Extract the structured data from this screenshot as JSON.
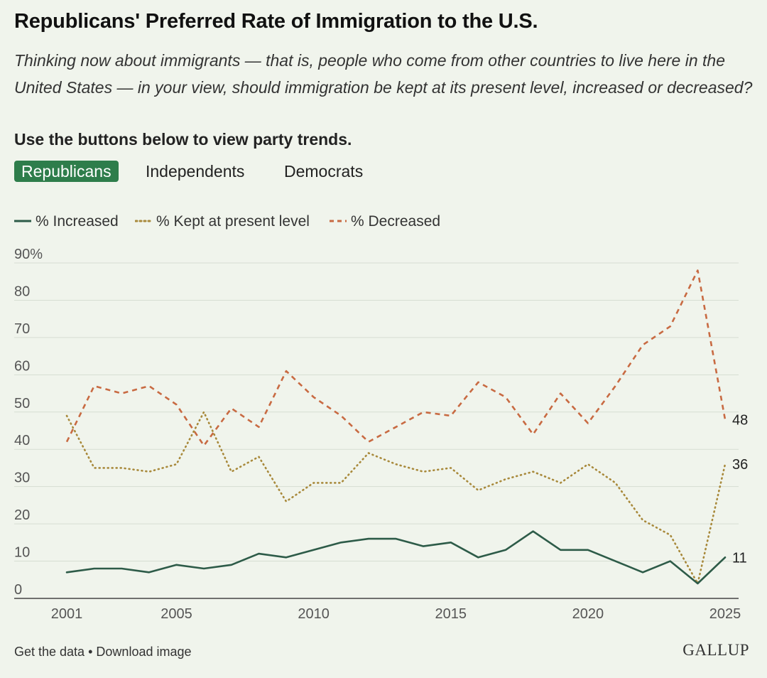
{
  "header": {
    "title": "Republicans' Preferred Rate of Immigration to the U.S.",
    "subtitle": "Thinking now about immigrants — that is, people who come from other countries to live here in the United States — in your view, should immigration be kept at its present level, increased or decreased?",
    "instruction": "Use the buttons below to view party trends."
  },
  "tabs": [
    {
      "label": "Republicans",
      "active": true
    },
    {
      "label": "Independents",
      "active": false
    },
    {
      "label": "Democrats",
      "active": false
    }
  ],
  "legend": [
    {
      "label": "% Increased"
    },
    {
      "label": "% Kept at present level"
    },
    {
      "label": "% Decreased"
    }
  ],
  "colors": {
    "increased": "#2d5b48",
    "kept": "#a8893b",
    "decreased": "#c86a42",
    "active_tab": "#2e7d4b",
    "grid": "#d6ddd2",
    "axis_text": "#555555"
  },
  "chart_data": {
    "type": "line",
    "x": [
      2001,
      2002,
      2003,
      2004,
      2005,
      2006,
      2007,
      2008,
      2009,
      2010,
      2011,
      2012,
      2013,
      2014,
      2015,
      2016,
      2017,
      2018,
      2019,
      2020,
      2021,
      2022,
      2023,
      2024,
      2025
    ],
    "series": [
      {
        "name": "% Increased",
        "style": "solid",
        "values": [
          7,
          8,
          8,
          7,
          9,
          8,
          9,
          12,
          11,
          13,
          15,
          16,
          16,
          14,
          15,
          11,
          13,
          18,
          13,
          13,
          10,
          7,
          10,
          4,
          11
        ],
        "end_label": "11"
      },
      {
        "name": "% Kept at present level",
        "style": "dotted",
        "values": [
          49,
          35,
          35,
          34,
          36,
          50,
          34,
          38,
          26,
          31,
          31,
          39,
          36,
          34,
          35,
          29,
          32,
          34,
          31,
          36,
          31,
          21,
          17,
          4,
          36
        ],
        "end_label": "36"
      },
      {
        "name": "% Decreased",
        "style": "dashed",
        "values": [
          42,
          57,
          55,
          57,
          52,
          41,
          51,
          46,
          61,
          54,
          49,
          42,
          46,
          50,
          49,
          58,
          54,
          44,
          55,
          47,
          57,
          68,
          73,
          88,
          48
        ],
        "end_label": "48"
      }
    ],
    "y_ticks": [
      "0",
      "10",
      "20",
      "30",
      "40",
      "50",
      "60",
      "70",
      "80",
      "90%"
    ],
    "x_ticks": [
      "2001",
      "2005",
      "2010",
      "2015",
      "2020",
      "2025"
    ],
    "ylim": [
      0,
      90
    ],
    "grid": true,
    "legend_position": "top-left"
  },
  "footer": {
    "get_data": "Get the data",
    "separator": "•",
    "download": "Download image",
    "logo": "GALLUP"
  }
}
